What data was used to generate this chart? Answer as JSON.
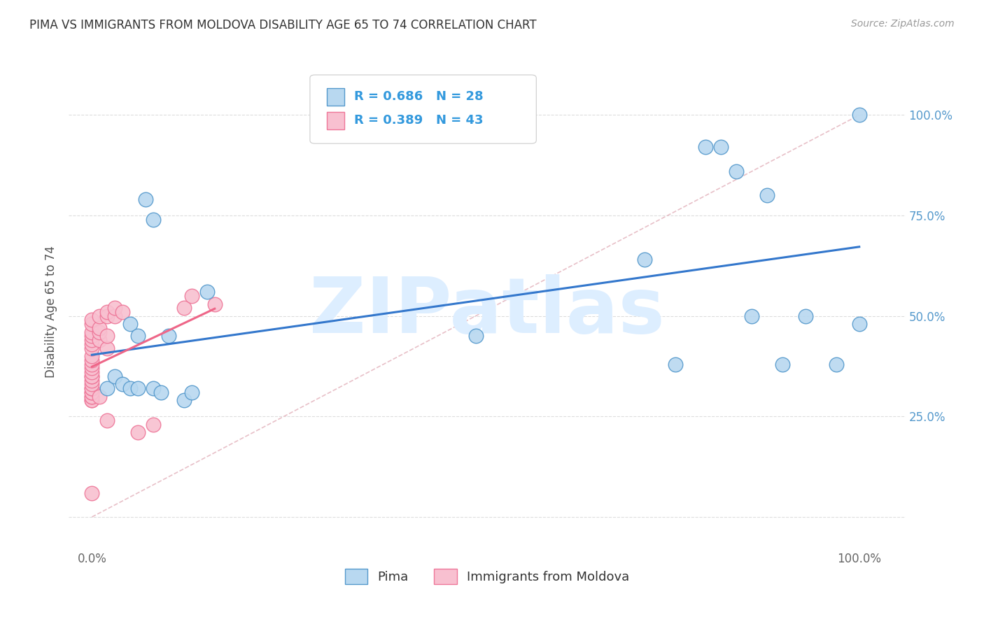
{
  "title": "PIMA VS IMMIGRANTS FROM MOLDOVA DISABILITY AGE 65 TO 74 CORRELATION CHART",
  "source": "Source: ZipAtlas.com",
  "ylabel": "Disability Age 65 to 74",
  "x_ticks": [
    0.0,
    0.25,
    0.5,
    0.75,
    1.0
  ],
  "x_ticklabels": [
    "0.0%",
    "",
    "",
    "",
    "100.0%"
  ],
  "y_ticks": [
    0.0,
    0.25,
    0.5,
    0.75,
    1.0
  ],
  "y_ticklabels": [
    "",
    "25.0%",
    "50.0%",
    "75.0%",
    "100.0%"
  ],
  "xlim": [
    -0.03,
    1.06
  ],
  "ylim": [
    -0.08,
    1.1
  ],
  "pima_color": "#b8d8f0",
  "moldova_color": "#f8c0d0",
  "pima_edge_color": "#5599cc",
  "moldova_edge_color": "#ee7799",
  "trendline_pima_color": "#3377cc",
  "trendline_moldova_color": "#ee6688",
  "diagonal_color": "#e8c0c8",
  "diagonal_style": "--",
  "R_pima": 0.686,
  "N_pima": 28,
  "R_moldova": 0.389,
  "N_moldova": 43,
  "legend_label_pima": "Pima",
  "legend_label_moldova": "Immigrants from Moldova",
  "watermark_text": "ZIPatlas",
  "watermark_color": "#ddeeff",
  "pima_x": [
    0.02,
    0.03,
    0.04,
    0.05,
    0.05,
    0.06,
    0.06,
    0.07,
    0.08,
    0.08,
    0.09,
    0.1,
    0.12,
    0.13,
    0.15,
    0.5,
    0.72,
    0.76,
    0.8,
    0.82,
    0.84,
    0.86,
    0.88,
    0.9,
    0.93,
    0.97,
    1.0,
    1.0
  ],
  "pima_y": [
    0.32,
    0.35,
    0.33,
    0.32,
    0.48,
    0.32,
    0.45,
    0.79,
    0.74,
    0.32,
    0.31,
    0.45,
    0.29,
    0.31,
    0.56,
    0.45,
    0.64,
    0.38,
    0.92,
    0.92,
    0.86,
    0.5,
    0.8,
    0.38,
    0.5,
    0.38,
    0.48,
    1.0
  ],
  "moldova_x": [
    0.0,
    0.0,
    0.0,
    0.0,
    0.0,
    0.0,
    0.0,
    0.0,
    0.0,
    0.0,
    0.0,
    0.0,
    0.0,
    0.0,
    0.0,
    0.0,
    0.0,
    0.0,
    0.0,
    0.0,
    0.0,
    0.0,
    0.0,
    0.0,
    0.0,
    0.01,
    0.01,
    0.01,
    0.01,
    0.01,
    0.02,
    0.02,
    0.02,
    0.02,
    0.02,
    0.03,
    0.03,
    0.04,
    0.06,
    0.08,
    0.12,
    0.13,
    0.16
  ],
  "moldova_y": [
    0.29,
    0.29,
    0.3,
    0.3,
    0.31,
    0.31,
    0.32,
    0.32,
    0.33,
    0.34,
    0.35,
    0.35,
    0.36,
    0.37,
    0.38,
    0.39,
    0.4,
    0.42,
    0.43,
    0.44,
    0.45,
    0.46,
    0.48,
    0.49,
    0.06,
    0.3,
    0.44,
    0.46,
    0.47,
    0.5,
    0.42,
    0.45,
    0.5,
    0.51,
    0.24,
    0.5,
    0.52,
    0.51,
    0.21,
    0.23,
    0.52,
    0.55,
    0.53
  ]
}
